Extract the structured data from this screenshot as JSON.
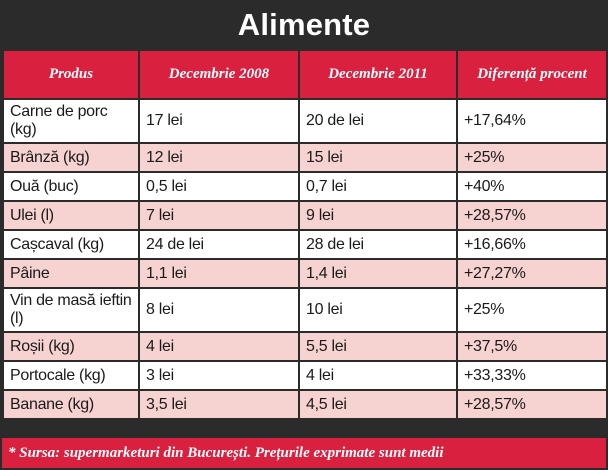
{
  "title": "Alimente",
  "headers": [
    "Produs",
    "Decembrie 2008",
    "Decembrie 2011",
    "Diferență procent"
  ],
  "rows": [
    {
      "produs": "Carne de porc (kg)",
      "dec2008": "17 lei",
      "dec2011": "20 de lei",
      "diferenta": "+17,64%"
    },
    {
      "produs": "Brânză (kg)",
      "dec2008": "12 lei",
      "dec2011": "15 lei",
      "diferenta": "+25%"
    },
    {
      "produs": "Ouă (buc)",
      "dec2008": "0,5 lei",
      "dec2011": "0,7 lei",
      "diferenta": "+40%"
    },
    {
      "produs": "Ulei (l)",
      "dec2008": "7 lei",
      "dec2011": "9 lei",
      "diferenta": "+28,57%"
    },
    {
      "produs": "Cașcaval (kg)",
      "dec2008": "24 de lei",
      "dec2011": "28 de lei",
      "diferenta": "+16,66%"
    },
    {
      "produs": "Pâine",
      "dec2008": "1,1 lei",
      "dec2011": "1,4 lei",
      "diferenta": "+27,27%"
    },
    {
      "produs": "Vin de masă ieftin (l)",
      "dec2008": "8 lei",
      "dec2011": "10 lei",
      "diferenta": "+25%"
    },
    {
      "produs": "Roșii (kg)",
      "dec2008": "4 lei",
      "dec2011": "5,5 lei",
      "diferenta": "+37,5%"
    },
    {
      "produs": "Portocale (kg)",
      "dec2008": "3 lei",
      "dec2011": "4 lei",
      "diferenta": "+33,33%"
    },
    {
      "produs": "Banane (kg)",
      "dec2008": "3,5 lei",
      "dec2011": "4,5 lei",
      "diferenta": "+28,57%"
    }
  ],
  "footer": "* Sursa: supermarketuri din București. Prețurile exprimate sunt medii",
  "colors": {
    "accent": "#d9203f",
    "row_alt": "#f6d2d0",
    "frame": "#2b2b2b"
  }
}
